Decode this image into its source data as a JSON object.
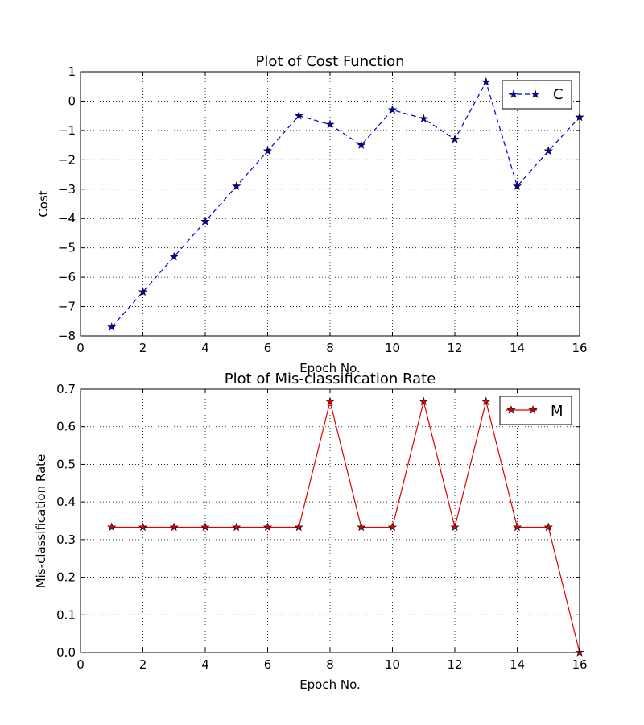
{
  "chart_data": [
    {
      "type": "line",
      "title": "Plot of Cost Function",
      "xlabel": "Epoch No.",
      "ylabel": "Cost",
      "xlim": [
        0,
        16
      ],
      "ylim": [
        -8,
        1
      ],
      "xticks": [
        "0",
        "2",
        "4",
        "6",
        "8",
        "10",
        "12",
        "14",
        "16"
      ],
      "yticks": [
        "−8",
        "−7",
        "−6",
        "−5",
        "−4",
        "−3",
        "−2",
        "−1",
        "0",
        "1"
      ],
      "grid": true,
      "legend_position": "top-right",
      "series": [
        {
          "name": "C",
          "color": "#0000cc",
          "line_style": "dashed",
          "marker": "star",
          "x": [
            1,
            2,
            3,
            4,
            5,
            6,
            7,
            8,
            9,
            10,
            11,
            12,
            13,
            14,
            15,
            16
          ],
          "y": [
            -7.7,
            -6.5,
            -5.3,
            -4.1,
            -2.9,
            -1.7,
            -0.5,
            -0.8,
            -1.5,
            -0.3,
            -0.6,
            -1.3,
            0.65,
            -2.9,
            -1.7,
            -0.55
          ]
        }
      ]
    },
    {
      "type": "line",
      "title": "Plot of Mis-classification Rate",
      "xlabel": "Epoch No.",
      "ylabel": "Mis-classification Rate",
      "xlim": [
        0,
        16
      ],
      "ylim": [
        0,
        0.7
      ],
      "xticks": [
        "0",
        "2",
        "4",
        "6",
        "8",
        "10",
        "12",
        "14",
        "16"
      ],
      "yticks": [
        "0.0",
        "0.1",
        "0.2",
        "0.3",
        "0.4",
        "0.5",
        "0.6",
        "0.7"
      ],
      "grid": true,
      "legend_position": "top-right",
      "series": [
        {
          "name": "M",
          "color": "#dd0000",
          "line_style": "solid",
          "marker": "star",
          "x": [
            1,
            2,
            3,
            4,
            5,
            6,
            7,
            8,
            9,
            10,
            11,
            12,
            13,
            14,
            15,
            16
          ],
          "y": [
            0.333,
            0.333,
            0.333,
            0.333,
            0.333,
            0.333,
            0.333,
            0.667,
            0.333,
            0.333,
            0.667,
            0.333,
            0.667,
            0.333,
            0.333,
            0.0
          ]
        }
      ]
    }
  ]
}
